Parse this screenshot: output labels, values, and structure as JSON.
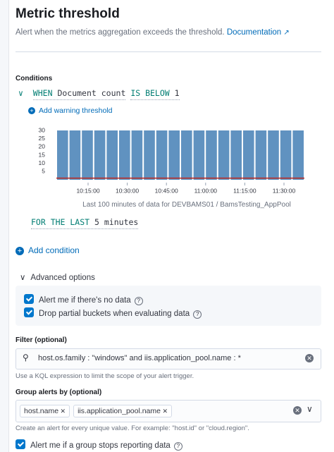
{
  "header": {
    "title": "Metric threshold",
    "description": "Alert when the metrics aggregation exceeds the threshold.",
    "link": "Documentation"
  },
  "conditions": {
    "label": "Conditions",
    "when": "WHEN",
    "aggregation": "Document count",
    "comparator": "IS BELOW",
    "threshold": 1,
    "add_warning": "Add warning threshold",
    "for_the_last": "FOR THE LAST",
    "window": "5 minutes"
  },
  "chart_data": {
    "type": "bar",
    "values": [
      30,
      30,
      30,
      30,
      30,
      30,
      30,
      30,
      30,
      30,
      30,
      30,
      30,
      30,
      30,
      30,
      30,
      30,
      30,
      30
    ],
    "color": "#6092c0",
    "threshold_color": "#bd271e",
    "ylim": [
      0,
      30
    ],
    "yticks": [
      5,
      10,
      15,
      20,
      25,
      30
    ],
    "x_labels": [
      "10:15:00",
      "10:30:00",
      "10:45:00",
      "11:00:00",
      "11:15:00",
      "11:30:00"
    ],
    "caption": "Last 100 minutes of data for DEVBAMS01 / BamsTesting_AppPool"
  },
  "add_condition": "Add condition",
  "advanced": {
    "label": "Advanced options",
    "options": [
      {
        "label": "Alert me if there's no data",
        "checked": true
      },
      {
        "label": "Drop partial buckets when evaluating data",
        "checked": true
      }
    ]
  },
  "filter": {
    "label": "Filter (optional)",
    "query": "host.os.family : \"windows\" and iis.application_pool.name : *",
    "help": "Use a KQL expression to limit the scope of your alert trigger."
  },
  "group_by": {
    "label": "Group alerts by (optional)",
    "chips": [
      "host.name",
      "iis.application_pool.name"
    ],
    "help": "Create an alert for every unique value. For example: \"host.id\" or \"cloud.region\"."
  },
  "group_stop": {
    "label": "Alert me if a group stops reporting data",
    "checked": true
  }
}
